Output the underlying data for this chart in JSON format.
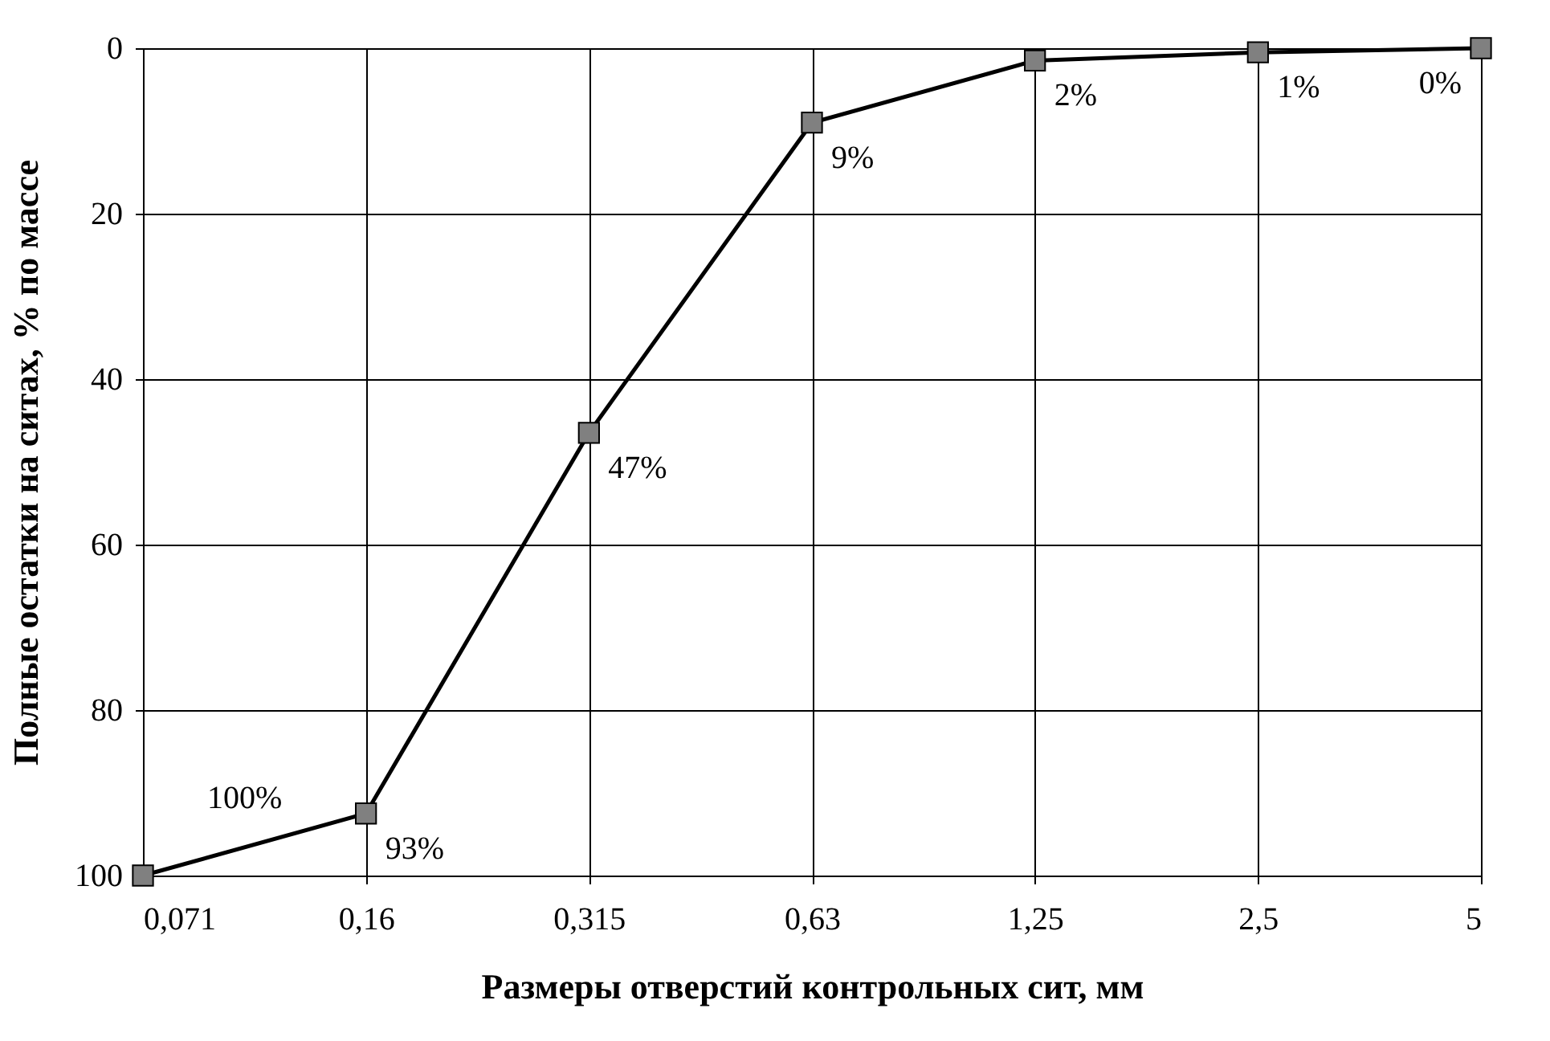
{
  "chart_data": {
    "type": "line",
    "xlabel": "Размеры отверстий контрольных сит, мм",
    "ylabel": "Полные остатки на ситах, % по массе",
    "categories": [
      "0,071",
      "0,16",
      "0,315",
      "0,63",
      "1,25",
      "2,5",
      "5"
    ],
    "series": [
      {
        "color": "#000000",
        "values": [
          100,
          92.5,
          46.5,
          9,
          1.5,
          0.5,
          0
        ],
        "value_labels": [
          "100%",
          "93%",
          "47%",
          "9%",
          "2%",
          "1%",
          "0%"
        ]
      }
    ],
    "ylim": [
      100,
      0
    ],
    "yticks": [
      0,
      20,
      40,
      60,
      80,
      100
    ],
    "grid": true,
    "marker": "square",
    "line_style": "solid"
  }
}
